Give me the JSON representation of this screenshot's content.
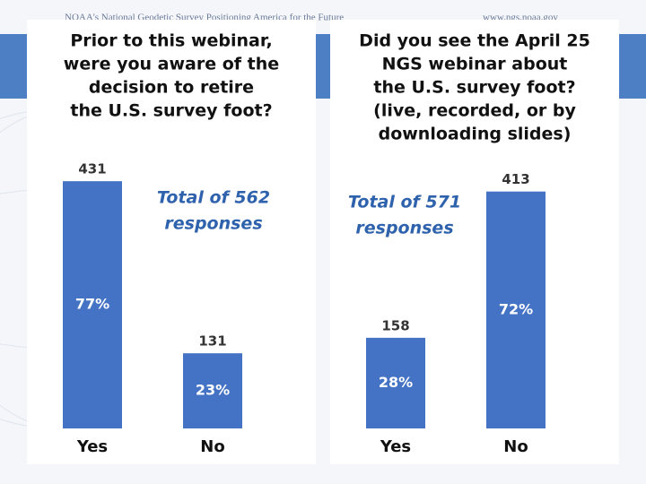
{
  "header": {
    "left": "NOAA's National Geodetic Survey Positioning America for the Future",
    "right": "www.ngs.noaa.gov"
  },
  "chart_data": [
    {
      "type": "bar",
      "title": [
        "Prior to this webinar,",
        "were you aware of the",
        "decision to retire",
        "the U.S. survey foot?"
      ],
      "annotation": [
        "Total of 562",
        "responses"
      ],
      "categories": [
        "Yes",
        "No"
      ],
      "values": [
        431,
        131
      ],
      "percent_labels": [
        "77%",
        "23%"
      ],
      "color": "#4472c4"
    },
    {
      "type": "bar",
      "title": [
        "Did you see the April 25",
        "NGS webinar about",
        "the U.S. survey foot?",
        "(live, recorded, or by",
        "downloading slides)"
      ],
      "annotation": [
        "Total of 571",
        "responses"
      ],
      "categories": [
        "Yes",
        "No"
      ],
      "values": [
        158,
        413
      ],
      "percent_labels": [
        "28%",
        "72%"
      ],
      "color": "#4472c4"
    }
  ]
}
